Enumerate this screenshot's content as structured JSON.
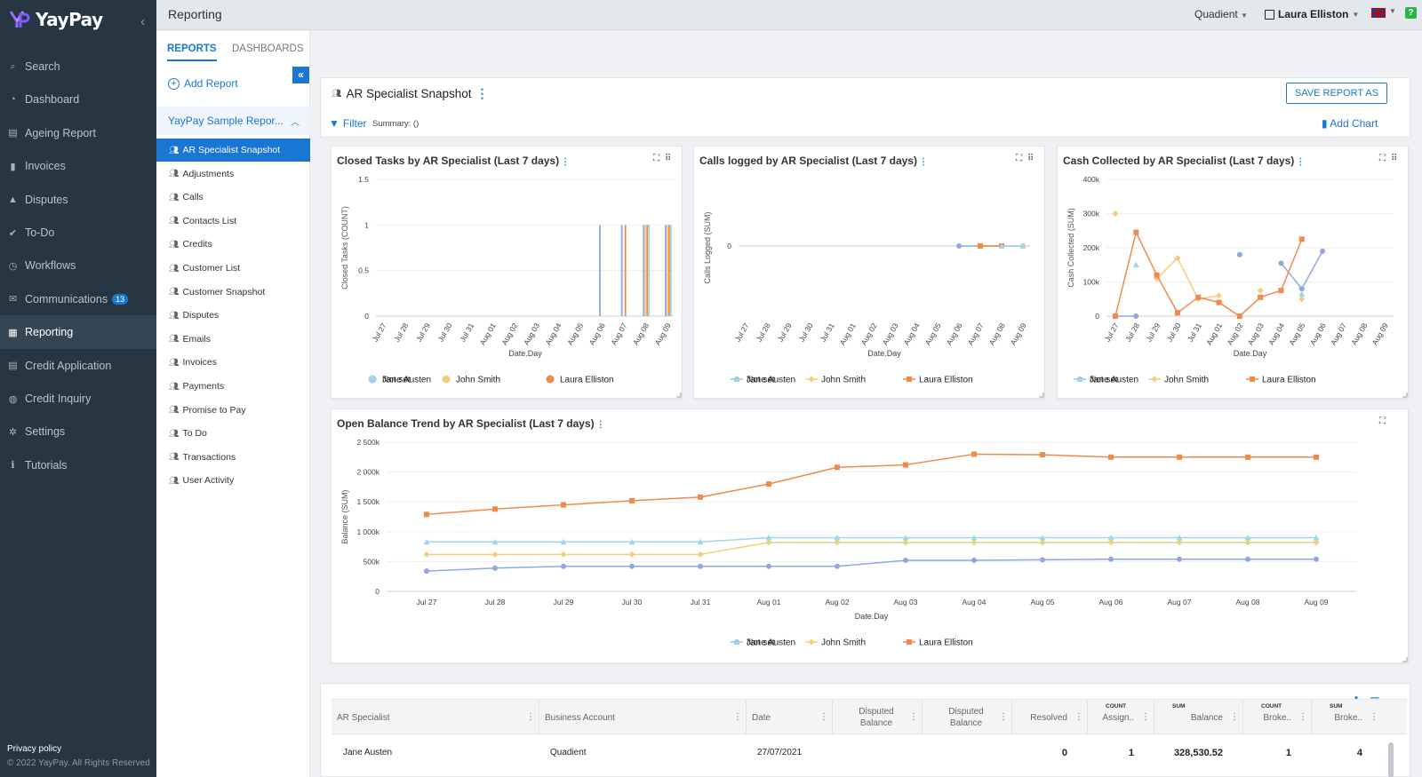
{
  "app": {
    "brand": "YayPay",
    "page_title": "Reporting",
    "org": "Quadient",
    "user": "Laura Elliston"
  },
  "nav": {
    "items": [
      {
        "label": "Search",
        "icon": "search-icon"
      },
      {
        "label": "Dashboard",
        "icon": "dashboard-icon"
      },
      {
        "label": "Ageing Report",
        "icon": "report-icon"
      },
      {
        "label": "Invoices",
        "icon": "invoice-icon"
      },
      {
        "label": "Disputes",
        "icon": "warning-icon"
      },
      {
        "label": "To-Do",
        "icon": "check-icon"
      },
      {
        "label": "Workflows",
        "icon": "clock-icon"
      },
      {
        "label": "Communications",
        "icon": "mail-icon",
        "badge": "13"
      },
      {
        "label": "Reporting",
        "icon": "chart-icon",
        "active": true
      },
      {
        "label": "Credit Application",
        "icon": "card-icon"
      },
      {
        "label": "Credit Inquiry",
        "icon": "globe-icon"
      },
      {
        "label": "Settings",
        "icon": "gear-icon"
      },
      {
        "label": "Tutorials",
        "icon": "info-icon"
      }
    ],
    "privacy": "Privacy policy",
    "copyright": "© 2022 YayPay. All Rights Reserved"
  },
  "panel": {
    "tabs": [
      "REPORTS",
      "DASHBOARDS"
    ],
    "add_report": "Add Report",
    "folder": "YayPay Sample Repor...",
    "reports": [
      "AR Specialist Snapshot",
      "Adjustments",
      "Calls",
      "Contacts List",
      "Credits",
      "Customer List",
      "Customer Snapshot",
      "Disputes",
      "Emails",
      "Invoices",
      "Payments",
      "Promise to Pay",
      "To Do",
      "Transactions",
      "User Activity"
    ]
  },
  "report": {
    "title": "AR Specialist Snapshot",
    "save_as": "SAVE REPORT AS",
    "filter": "Filter",
    "summary": "Summary: ()",
    "add_chart": "Add Chart"
  },
  "colors": {
    "jane": "#8fa6e3",
    "john": "#f5cb7d",
    "laura": "#ef8a4b",
    "notset": "#9fd6ef",
    "accent": "#1976d2"
  },
  "chart_data": [
    {
      "type": "bar",
      "title": "Closed Tasks by AR Specialist (Last 7 days)",
      "xlabel": "Date.Day",
      "ylabel": "Closed Tasks (COUNT)",
      "ylim": [
        0,
        1.5
      ],
      "y_ticks": [
        "1.5",
        "1",
        "0.5",
        "0"
      ],
      "categories": [
        "Jul 27",
        "Jul 28",
        "Jul 29",
        "Jul 30",
        "Jul 31",
        "Aug 01",
        "Aug 02",
        "Aug 03",
        "Aug 04",
        "Aug 05",
        "Aug 06",
        "Aug 07",
        "Aug 08",
        "Aug 09"
      ],
      "series": [
        {
          "name": "Jane Austen",
          "values": [
            0,
            0,
            0,
            0,
            0,
            0,
            0,
            0,
            0,
            0,
            1,
            1,
            1,
            1
          ]
        },
        {
          "name": "John Smith",
          "values": [
            0,
            0,
            0,
            0,
            0,
            0,
            0,
            0,
            0,
            0,
            0,
            0,
            1,
            1
          ]
        },
        {
          "name": "Laura Elliston",
          "values": [
            0,
            0,
            0,
            0,
            0,
            0,
            0,
            0,
            0,
            0,
            0,
            1,
            1,
            1
          ]
        },
        {
          "name": "Not set",
          "values": [
            0,
            0,
            0,
            0,
            0,
            0,
            0,
            0,
            0,
            0,
            0,
            0,
            1,
            1
          ]
        }
      ],
      "legend": "bottom"
    },
    {
      "type": "line",
      "title": "Calls logged by AR Specialist (Last 7 days)",
      "xlabel": "Date.Day",
      "ylabel": "Calls Logged (SUM)",
      "y_ticks": [
        "0"
      ],
      "categories": [
        "Jul 27",
        "Jul 28",
        "Jul 29",
        "Jul 30",
        "Jul 31",
        "Aug 01",
        "Aug 02",
        "Aug 03",
        "Aug 04",
        "Aug 05",
        "Aug 06",
        "Aug 07",
        "Aug 08",
        "Aug 09"
      ],
      "series": [
        {
          "name": "Jane Austen",
          "values": [
            null,
            null,
            null,
            null,
            null,
            null,
            null,
            null,
            null,
            null,
            0,
            0,
            0,
            0
          ]
        },
        {
          "name": "John Smith",
          "values": [
            null,
            null,
            null,
            null,
            null,
            null,
            null,
            null,
            null,
            null,
            null,
            0,
            0,
            0
          ]
        },
        {
          "name": "Laura Elliston",
          "values": [
            null,
            null,
            null,
            null,
            null,
            null,
            null,
            null,
            null,
            null,
            null,
            0,
            0,
            null
          ]
        },
        {
          "name": "Not set",
          "values": [
            null,
            null,
            null,
            null,
            null,
            null,
            null,
            null,
            null,
            null,
            null,
            null,
            0,
            0
          ]
        }
      ],
      "legend": "bottom"
    },
    {
      "type": "line",
      "title": "Cash Collected by AR Specialist (Last 7 days)",
      "xlabel": "Date.Day",
      "ylabel": "Cash Collected (SUM)",
      "ylim": [
        0,
        400000
      ],
      "y_ticks": [
        "400k",
        "300k",
        "200k",
        "100k",
        "0"
      ],
      "categories": [
        "Jul 27",
        "Jul 28",
        "Jul 29",
        "Jul 30",
        "Jul 31",
        "Aug 01",
        "Aug 02",
        "Aug 03",
        "Aug 04",
        "Aug 05",
        "Aug 06",
        "Aug 07",
        "Aug 08",
        "Aug 09"
      ],
      "series": [
        {
          "name": "Jane Austen",
          "values": [
            0,
            0,
            null,
            null,
            null,
            null,
            180000,
            null,
            155000,
            80000,
            190000,
            null,
            null,
            null
          ]
        },
        {
          "name": "John Smith",
          "values": [
            300000,
            null,
            110000,
            170000,
            50000,
            60000,
            null,
            75000,
            null,
            50000,
            null,
            null,
            null,
            null
          ]
        },
        {
          "name": "Laura Elliston",
          "values": [
            0,
            245000,
            120000,
            10000,
            55000,
            40000,
            0,
            55000,
            75000,
            225000,
            null,
            null,
            null,
            null
          ]
        },
        {
          "name": "Not set",
          "values": [
            null,
            150000,
            null,
            null,
            null,
            null,
            null,
            null,
            null,
            65000,
            null,
            null,
            null,
            null
          ]
        }
      ],
      "legend": "bottom"
    },
    {
      "type": "line",
      "title": "Open Balance Trend by AR Specialist (Last 7 days)",
      "xlabel": "Date.Day",
      "ylabel": "Balance (SUM)",
      "ylim": [
        0,
        2500000
      ],
      "y_ticks": [
        "2 500k",
        "2 000k",
        "1 500k",
        "1 000k",
        "500k",
        "0"
      ],
      "categories": [
        "Jul 27",
        "Jul 28",
        "Jul 29",
        "Jul 30",
        "Jul 31",
        "Aug 01",
        "Aug 02",
        "Aug 03",
        "Aug 04",
        "Aug 05",
        "Aug 06",
        "Aug 07",
        "Aug 08",
        "Aug 09"
      ],
      "series": [
        {
          "name": "Jane Austen",
          "values": [
            340000,
            390000,
            420000,
            420000,
            420000,
            420000,
            420000,
            520000,
            520000,
            530000,
            540000,
            540000,
            540000,
            540000
          ]
        },
        {
          "name": "John Smith",
          "values": [
            620000,
            620000,
            620000,
            620000,
            620000,
            820000,
            820000,
            820000,
            820000,
            820000,
            820000,
            820000,
            820000,
            820000
          ]
        },
        {
          "name": "Laura Elliston",
          "values": [
            1290000,
            1380000,
            1450000,
            1520000,
            1580000,
            1800000,
            2080000,
            2120000,
            2300000,
            2290000,
            2250000,
            2250000,
            2250000,
            2250000
          ]
        },
        {
          "name": "Not set",
          "values": [
            830000,
            830000,
            830000,
            830000,
            830000,
            900000,
            900000,
            900000,
            900000,
            900000,
            900000,
            900000,
            900000,
            900000
          ]
        }
      ],
      "legend": "bottom"
    }
  ],
  "table": {
    "columns": [
      {
        "label": "AR Specialist",
        "agg": ""
      },
      {
        "label": "Business Account",
        "agg": ""
      },
      {
        "label": "Date",
        "agg": ""
      },
      {
        "label": "Disputed Balance",
        "agg": ""
      },
      {
        "label": "Disputed Balance",
        "agg": ""
      },
      {
        "label": "Resolved",
        "agg": ""
      },
      {
        "label": "Assign..",
        "agg": "COUNT"
      },
      {
        "label": "Balance",
        "agg": "SUM"
      },
      {
        "label": "Broke..",
        "agg": "COUNT"
      },
      {
        "label": "Broke..",
        "agg": "SUM"
      }
    ],
    "rows": [
      [
        "Jane Austen",
        "Quadient",
        "27/07/2021",
        "",
        "",
        "0",
        "1",
        "328,530.52",
        "1",
        "4"
      ]
    ]
  }
}
